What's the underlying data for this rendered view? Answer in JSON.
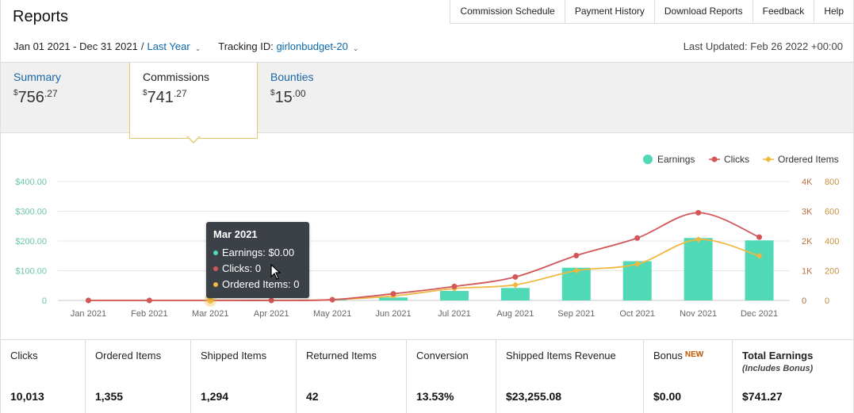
{
  "header": {
    "title": "Reports",
    "nav": [
      "Commission Schedule",
      "Payment History",
      "Download Reports",
      "Feedback",
      "Help"
    ]
  },
  "filters": {
    "date_range": "Jan 01 2021 - Dec 31 2021",
    "separator": "/",
    "preset": "Last Year",
    "tracking_label": "Tracking ID:",
    "tracking_id": "girlonbudget-20",
    "last_updated": "Last Updated: Feb 26 2022 +00:00"
  },
  "tabs": [
    {
      "label": "Summary",
      "currency": "$",
      "amount": "756",
      "cents": ".27"
    },
    {
      "label": "Commissions",
      "currency": "$",
      "amount": "741",
      "cents": ".27"
    },
    {
      "label": "Bounties",
      "currency": "$",
      "amount": "15",
      "cents": ".00"
    }
  ],
  "chart_data": {
    "type": "bar+line",
    "categories": [
      "Jan 2021",
      "Feb 2021",
      "Mar 2021",
      "Apr 2021",
      "May 2021",
      "Jun 2021",
      "Jul 2021",
      "Aug 2021",
      "Sep 2021",
      "Oct 2021",
      "Nov 2021",
      "Dec 2021"
    ],
    "series": [
      {
        "name": "Earnings",
        "type": "bar",
        "axis": "left",
        "color": "#4fd9b7",
        "values": [
          0,
          0,
          0,
          0,
          3,
          10,
          32,
          42,
          110,
          132,
          210,
          202
        ]
      },
      {
        "name": "Clicks",
        "type": "line",
        "axis": "right1",
        "color": "#d35658",
        "values": [
          0,
          0,
          0,
          0,
          25,
          225,
          470,
          790,
          1510,
          2100,
          2950,
          2130
        ]
      },
      {
        "name": "Ordered Items",
        "type": "line",
        "axis": "right2",
        "color": "#f0b840",
        "values": [
          0,
          0,
          0,
          0,
          5,
          30,
          80,
          105,
          200,
          245,
          410,
          300
        ]
      }
    ],
    "left_axis": {
      "ticks": [
        "0",
        "$100.00",
        "$200.00",
        "$300.00",
        "$400.00"
      ],
      "max": 400,
      "color": "#6cc6ac"
    },
    "right1_axis": {
      "ticks": [
        "0",
        "1K",
        "2K",
        "3K",
        "4K"
      ],
      "max": 4000,
      "color": "#b87040"
    },
    "right2_axis": {
      "ticks": [
        "0",
        "200",
        "400",
        "600",
        "800"
      ],
      "max": 800,
      "color": "#c89040"
    },
    "legend": [
      "Earnings",
      "Clicks",
      "Ordered Items"
    ],
    "legend_position": "top-right",
    "grid": true
  },
  "tooltip": {
    "title": "Mar 2021",
    "rows": [
      {
        "text": "Earnings: $0.00",
        "color": "#4fd9b7"
      },
      {
        "text": "Clicks: 0",
        "color": "#d35658"
      },
      {
        "text": "Ordered Items: 0",
        "color": "#f0b840"
      }
    ]
  },
  "stats": [
    {
      "label": "Clicks",
      "value": "10,013"
    },
    {
      "label": "Ordered Items",
      "value": "1,355"
    },
    {
      "label": "Shipped Items",
      "value": "1,294"
    },
    {
      "label": "Returned Items",
      "value": "42"
    },
    {
      "label": "Conversion",
      "value": "13.53%"
    },
    {
      "label": "Shipped Items Revenue",
      "value": "$23,255.08"
    },
    {
      "label": "Bonus",
      "badge": "NEW",
      "value": "$0.00"
    },
    {
      "label": "Total Earnings",
      "sub": "(Includes Bonus)",
      "value": "$741.27"
    }
  ]
}
